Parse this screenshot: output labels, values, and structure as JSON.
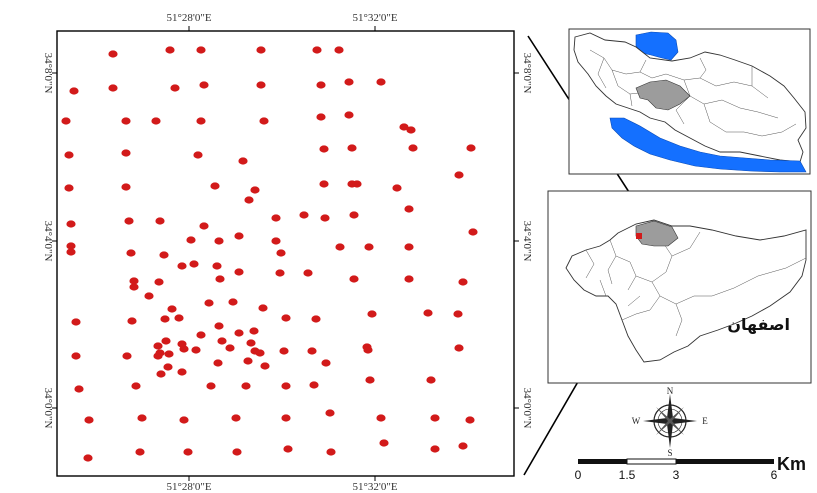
{
  "main_map": {
    "top_ticks": [
      "51°28'0\"E",
      "51°32'0\"E"
    ],
    "bottom_ticks": [
      "51°28'0\"E",
      "51°32'0\"E"
    ],
    "left_ticks": [
      "34°8'0\"N",
      "34°4'0\"N",
      "34°0'0\"N"
    ],
    "right_ticks": [
      "34°8'0\"N",
      "34°4'0\"N",
      "34°0'0\"N"
    ],
    "point_color": "#d21a1a",
    "sample_point_count": 165
  },
  "inset_iran": {
    "highlight_color": "#9c9c9c",
    "water_color": "#1470ff"
  },
  "inset_isfahan": {
    "label": "اصفهان",
    "highlight_color": "#9c9c9c",
    "marker_color": "#d21a1a"
  },
  "compass": {
    "n": "N",
    "s": "S",
    "e": "E",
    "w": "W"
  },
  "scale_bar": {
    "labels": [
      "0",
      "1.5",
      "3",
      "6"
    ],
    "unit": "Km"
  }
}
